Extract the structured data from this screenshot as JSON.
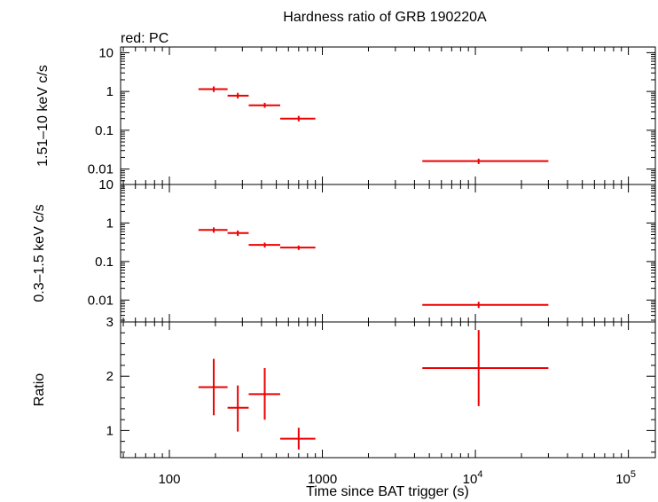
{
  "chart_data": {
    "type": "scatter",
    "title": "Hardness ratio of GRB 190220A",
    "subtitle": "red: PC",
    "xlabel": "Time since BAT trigger (s)",
    "x_scale": "log",
    "xlim": [
      48,
      150000
    ],
    "x_tick_labels": [
      {
        "value": 100,
        "label": "100"
      },
      {
        "value": 1000,
        "label": "1000"
      },
      {
        "value": 10000,
        "base": "10",
        "exp": "4"
      },
      {
        "value": 100000,
        "base": "10",
        "exp": "5"
      }
    ],
    "series_color": "#ee0000",
    "grid": false,
    "panels": [
      {
        "id": "hard",
        "ylabel": "1.51–10 keV c/s",
        "y_scale": "log",
        "ylim": [
          0.004,
          14
        ],
        "y_ticks": [
          {
            "value": 10,
            "label": "10"
          },
          {
            "value": 1,
            "label": "1"
          },
          {
            "value": 0.1,
            "label": "0.1"
          },
          {
            "value": 0.01,
            "label": "0.01"
          }
        ],
        "points": [
          {
            "x": 195,
            "xlo": 155,
            "xhi": 240,
            "y": 1.15,
            "ylo": 0.97,
            "yhi": 1.35
          },
          {
            "x": 280,
            "xlo": 240,
            "xhi": 330,
            "y": 0.78,
            "ylo": 0.66,
            "yhi": 0.92
          },
          {
            "x": 420,
            "xlo": 330,
            "xhi": 530,
            "y": 0.44,
            "ylo": 0.38,
            "yhi": 0.51
          },
          {
            "x": 700,
            "xlo": 530,
            "xhi": 900,
            "y": 0.2,
            "ylo": 0.17,
            "yhi": 0.235
          },
          {
            "x": 10500,
            "xlo": 4500,
            "xhi": 30000,
            "y": 0.016,
            "ylo": 0.0135,
            "yhi": 0.0185
          }
        ]
      },
      {
        "id": "soft",
        "ylabel": "0.3–1.5 keV c/s",
        "y_scale": "log",
        "ylim": [
          0.0027,
          10
        ],
        "y_ticks": [
          {
            "value": 10,
            "label": "10"
          },
          {
            "value": 1,
            "label": "1"
          },
          {
            "value": 0.1,
            "label": "0.1"
          },
          {
            "value": 0.01,
            "label": "0.01"
          }
        ],
        "points": [
          {
            "x": 195,
            "xlo": 155,
            "xhi": 240,
            "y": 0.66,
            "ylo": 0.56,
            "yhi": 0.77
          },
          {
            "x": 280,
            "xlo": 240,
            "xhi": 330,
            "y": 0.55,
            "ylo": 0.46,
            "yhi": 0.64
          },
          {
            "x": 420,
            "xlo": 330,
            "xhi": 530,
            "y": 0.27,
            "ylo": 0.23,
            "yhi": 0.31
          },
          {
            "x": 700,
            "xlo": 530,
            "xhi": 900,
            "y": 0.23,
            "ylo": 0.2,
            "yhi": 0.26
          },
          {
            "x": 10500,
            "xlo": 4500,
            "xhi": 30000,
            "y": 0.0075,
            "ylo": 0.0062,
            "yhi": 0.009
          }
        ]
      },
      {
        "id": "ratio",
        "ylabel": "Ratio",
        "y_scale": "linear",
        "ylim": [
          0.5,
          3
        ],
        "y_ticks": [
          {
            "value": 3,
            "label": "3"
          },
          {
            "value": 2,
            "label": "2"
          },
          {
            "value": 1,
            "label": "1"
          }
        ],
        "points": [
          {
            "x": 195,
            "xlo": 155,
            "xhi": 240,
            "y": 1.8,
            "ylo": 1.28,
            "yhi": 2.32
          },
          {
            "x": 280,
            "xlo": 240,
            "xhi": 330,
            "y": 1.42,
            "ylo": 0.98,
            "yhi": 1.83
          },
          {
            "x": 420,
            "xlo": 330,
            "xhi": 530,
            "y": 1.67,
            "ylo": 1.2,
            "yhi": 2.15
          },
          {
            "x": 700,
            "xlo": 530,
            "xhi": 900,
            "y": 0.85,
            "ylo": 0.65,
            "yhi": 1.05
          },
          {
            "x": 10500,
            "xlo": 4500,
            "xhi": 30000,
            "y": 2.15,
            "ylo": 1.45,
            "yhi": 2.85
          }
        ]
      }
    ]
  }
}
